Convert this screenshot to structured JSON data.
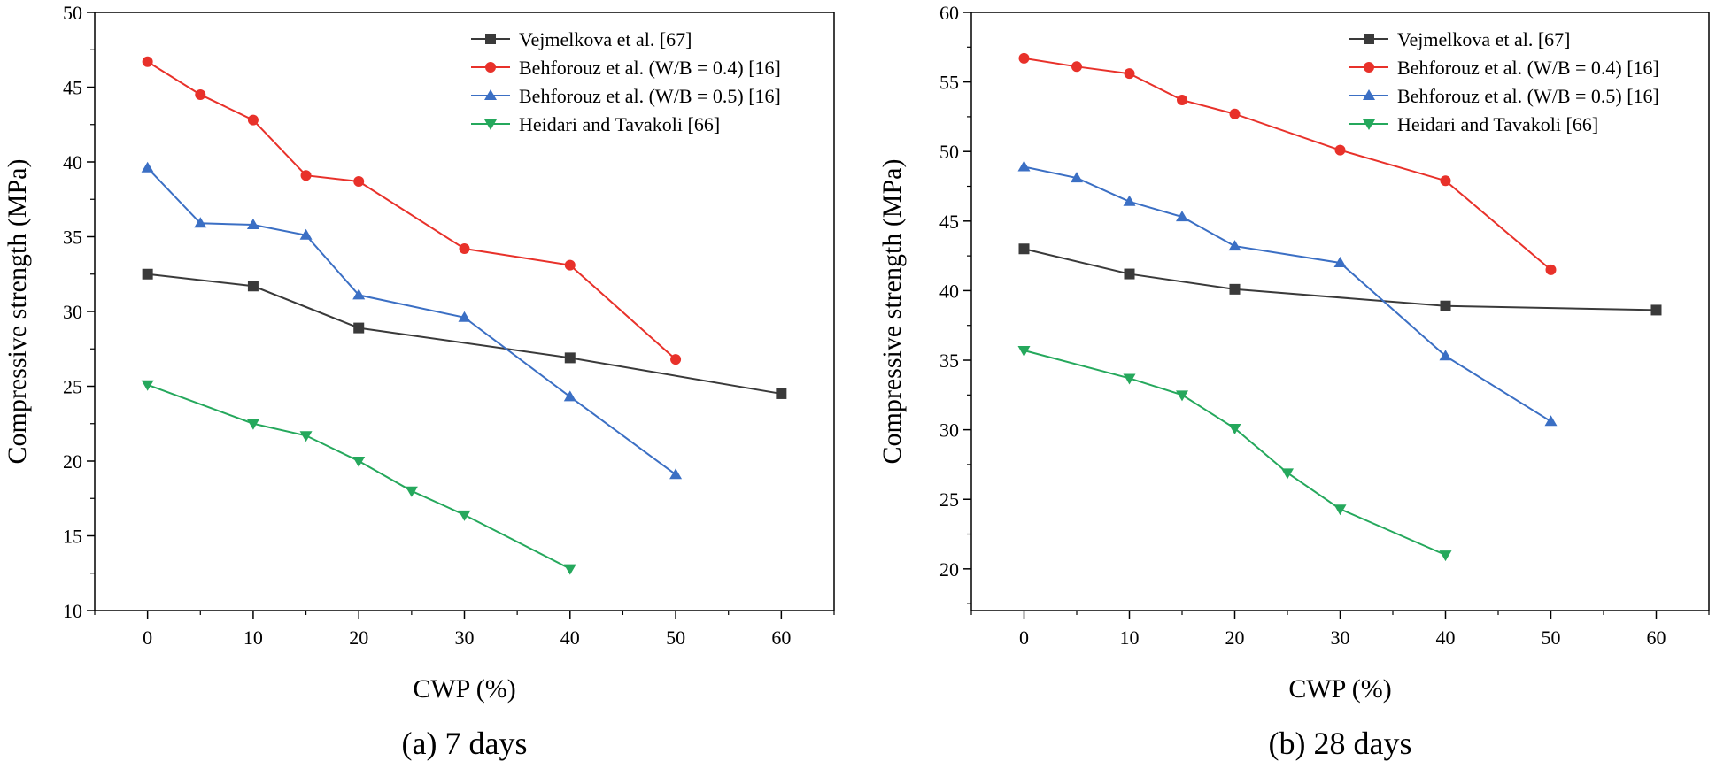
{
  "chart_data": [
    {
      "type": "line",
      "caption": "(a) 7 days",
      "xlabel": "CWP (%)",
      "ylabel": "Compressive strength (MPa)",
      "xlim": [
        -5,
        65
      ],
      "ylim": [
        10,
        50
      ],
      "xticks": [
        0,
        10,
        20,
        30,
        40,
        50,
        60
      ],
      "yticks": [
        10,
        15,
        20,
        25,
        30,
        35,
        40,
        45,
        50
      ],
      "legend_position": "top-right",
      "series": [
        {
          "name": "Vejmelkova et al. [67]",
          "color": "#3a3a3a",
          "marker": "square",
          "x": [
            0,
            10,
            20,
            40,
            60
          ],
          "y": [
            32.5,
            31.7,
            28.9,
            26.9,
            24.5
          ]
        },
        {
          "name": "Behforouz et al. (W/B = 0.4) [16]",
          "color": "#e8312a",
          "marker": "circle",
          "x": [
            0,
            5,
            10,
            15,
            20,
            30,
            40,
            50
          ],
          "y": [
            46.7,
            44.5,
            42.8,
            39.1,
            38.7,
            34.2,
            33.1,
            26.8
          ]
        },
        {
          "name": "Behforouz et al. (W/B = 0.5) [16]",
          "color": "#3b6fc4",
          "marker": "triangle-up",
          "x": [
            0,
            5,
            10,
            15,
            20,
            30,
            40,
            50
          ],
          "y": [
            39.6,
            35.9,
            35.8,
            35.1,
            31.1,
            29.6,
            24.3,
            19.1
          ]
        },
        {
          "name": "Heidari and Tavakoli  [66]",
          "color": "#25a85c",
          "marker": "triangle-down",
          "x": [
            0,
            10,
            15,
            20,
            25,
            30,
            40
          ],
          "y": [
            25.1,
            22.5,
            21.7,
            20.0,
            18.0,
            16.4,
            12.8
          ]
        }
      ]
    },
    {
      "type": "line",
      "caption": "(b) 28 days",
      "xlabel": "CWP (%)",
      "ylabel": "Compressive strength (MPa)",
      "xlim": [
        -5,
        65
      ],
      "ylim": [
        17,
        60
      ],
      "xticks": [
        0,
        10,
        20,
        30,
        40,
        50,
        60
      ],
      "yticks": [
        20,
        25,
        30,
        35,
        40,
        45,
        50,
        55,
        60
      ],
      "legend_position": "top-right",
      "series": [
        {
          "name": "Vejmelkova et al. [67]",
          "color": "#3a3a3a",
          "marker": "square",
          "x": [
            0,
            10,
            20,
            40,
            60
          ],
          "y": [
            43.0,
            41.2,
            40.1,
            38.9,
            38.6
          ]
        },
        {
          "name": "Behforouz et al. (W/B = 0.4) [16]",
          "color": "#e8312a",
          "marker": "circle",
          "x": [
            0,
            5,
            10,
            15,
            20,
            30,
            40,
            50
          ],
          "y": [
            56.7,
            56.1,
            55.6,
            53.7,
            52.7,
            50.1,
            47.9,
            41.5
          ]
        },
        {
          "name": "Behforouz et al. (W/B = 0.5) [16]",
          "color": "#3b6fc4",
          "marker": "triangle-up",
          "x": [
            0,
            5,
            10,
            15,
            20,
            30,
            40,
            50
          ],
          "y": [
            48.9,
            48.1,
            46.4,
            45.3,
            43.2,
            42.0,
            35.3,
            30.6
          ]
        },
        {
          "name": "Heidari and Tavakoli [66]",
          "color": "#25a85c",
          "marker": "triangle-down",
          "x": [
            0,
            10,
            15,
            20,
            25,
            30,
            40
          ],
          "y": [
            35.7,
            33.7,
            32.5,
            30.1,
            26.9,
            24.3,
            21.0
          ]
        }
      ]
    }
  ]
}
